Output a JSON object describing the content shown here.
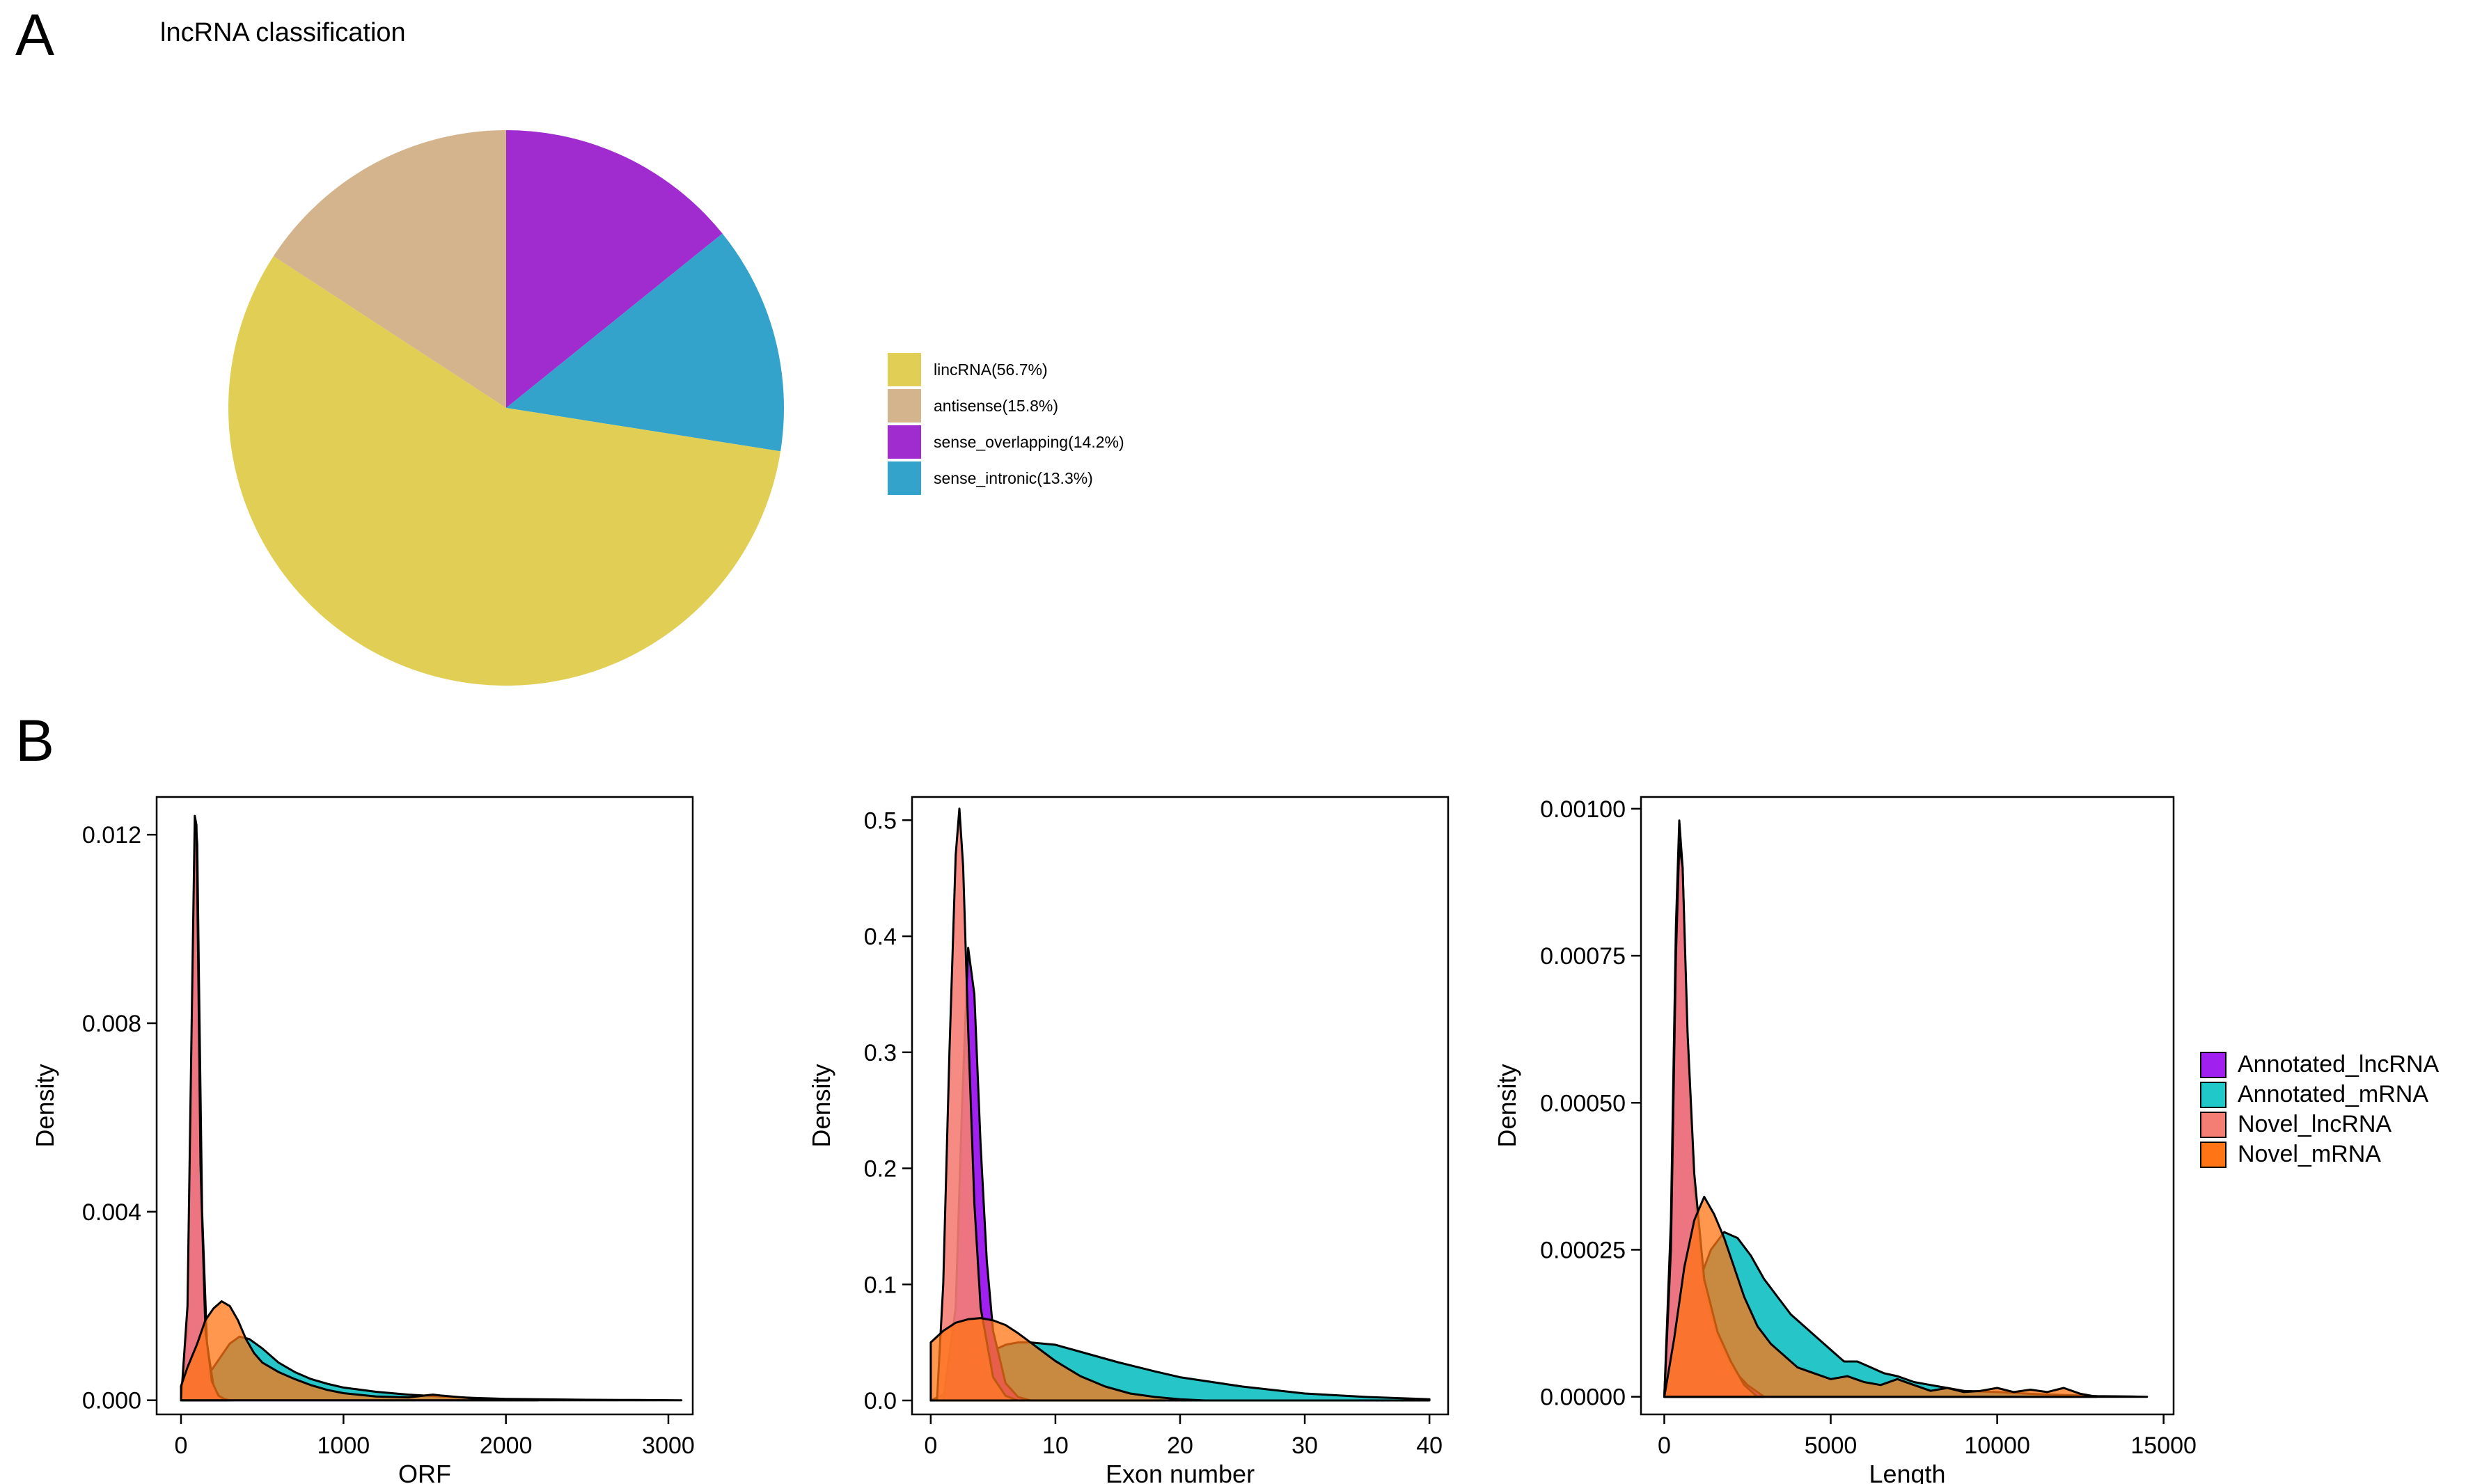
{
  "panels": {
    "a_label": "A",
    "b_label": "B"
  },
  "chart_data": [
    {
      "type": "pie",
      "title": "lncRNA classification",
      "slices": [
        {
          "label": "lincRNA(56.7%)",
          "name": "lincRNA",
          "value": 56.7,
          "color": "#E1CF55"
        },
        {
          "label": "antisense(15.8%)",
          "name": "antisense",
          "value": 15.8,
          "color": "#D3B48C"
        },
        {
          "label": "sense_overlapping(14.2%)",
          "name": "sense_overlapping",
          "value": 14.2,
          "color": "#A02BCE"
        },
        {
          "label": "sense_intronic(13.3%)",
          "name": "sense_intronic",
          "value": 13.3,
          "color": "#34A3CB"
        }
      ],
      "legend_order": [
        0,
        1,
        2,
        3
      ],
      "draw_order": [
        2,
        3,
        0,
        1
      ]
    },
    {
      "type": "area",
      "id": "orf",
      "xlabel": "ORF",
      "ylabel": "Density",
      "xlim": [
        -150,
        3150
      ],
      "ylim": [
        -0.0003,
        0.0128
      ],
      "xticks": [
        0,
        1000,
        2000,
        3000
      ],
      "yticks": [
        0.0,
        0.004,
        0.008,
        0.012
      ],
      "ytick_labels": [
        "0.000",
        "0.004",
        "0.008",
        "0.012"
      ],
      "series": [
        {
          "name": "Annotated_mRNA",
          "x": [
            0,
            60,
            120,
            180,
            240,
            300,
            360,
            420,
            500,
            600,
            700,
            800,
            900,
            1000,
            1200,
            1400,
            1600,
            1800,
            2000,
            2200,
            2500,
            2800,
            3080
          ],
          "y": [
            0.0,
            0.0001,
            0.0003,
            0.0006,
            0.0009,
            0.0012,
            0.00135,
            0.0013,
            0.0011,
            0.0008,
            0.0006,
            0.00045,
            0.00035,
            0.00027,
            0.00018,
            0.00012,
            8e-05,
            5e-05,
            3e-05,
            2e-05,
            1e-05,
            5e-06,
            0.0
          ]
        },
        {
          "name": "Annotated_lncRNA",
          "x": [
            0,
            40,
            70,
            90,
            100,
            110,
            130,
            160,
            200,
            240,
            300
          ],
          "y": [
            0.0,
            0.0015,
            0.0085,
            0.0123,
            0.0118,
            0.009,
            0.004,
            0.0012,
            0.0003,
            5e-05,
            0.0
          ]
        },
        {
          "name": "Novel_lncRNA",
          "x": [
            0,
            40,
            70,
            85,
            95,
            105,
            120,
            150,
            190,
            230,
            280
          ],
          "y": [
            0.0,
            0.002,
            0.009,
            0.0124,
            0.0122,
            0.0095,
            0.005,
            0.0015,
            0.0004,
            0.0001,
            0.0
          ]
        },
        {
          "name": "Novel_mRNA",
          "x": [
            0,
            40,
            100,
            150,
            200,
            250,
            300,
            350,
            400,
            450,
            500,
            600,
            700,
            800,
            900,
            1000,
            1200,
            1400,
            1500,
            1550,
            1600,
            1800,
            2000,
            2200
          ],
          "y": [
            0.0003,
            0.0007,
            0.0012,
            0.0017,
            0.00195,
            0.0021,
            0.002,
            0.0017,
            0.0013,
            0.001,
            0.0008,
            0.0006,
            0.00045,
            0.00032,
            0.00022,
            0.00015,
            8e-05,
            6e-05,
            0.0001,
            0.00012,
            0.0001,
            4e-05,
            1e-05,
            0.0
          ]
        }
      ]
    },
    {
      "type": "area",
      "id": "exon",
      "xlabel": "Exon number",
      "ylabel": "Density",
      "xlim": [
        -1.5,
        41.5
      ],
      "ylim": [
        -0.012,
        0.52
      ],
      "xticks": [
        0,
        10,
        20,
        30,
        40
      ],
      "yticks": [
        0.0,
        0.1,
        0.2,
        0.3,
        0.4,
        0.5
      ],
      "ytick_labels": [
        "0.0",
        "0.1",
        "0.2",
        "0.3",
        "0.4",
        "0.5"
      ],
      "series": [
        {
          "name": "Annotated_mRNA",
          "x": [
            0,
            1,
            2,
            3,
            4,
            5,
            6,
            7,
            8,
            10,
            12,
            15,
            18,
            20,
            25,
            30,
            35,
            40
          ],
          "y": [
            0.0,
            0.005,
            0.015,
            0.025,
            0.035,
            0.043,
            0.048,
            0.05,
            0.05,
            0.048,
            0.042,
            0.033,
            0.025,
            0.02,
            0.012,
            0.006,
            0.003,
            0.001
          ]
        },
        {
          "name": "Annotated_lncRNA",
          "x": [
            1,
            2,
            2.5,
            3,
            3.5,
            4,
            4.5,
            5,
            6,
            7,
            8
          ],
          "y": [
            0.0,
            0.08,
            0.25,
            0.39,
            0.35,
            0.22,
            0.12,
            0.06,
            0.015,
            0.003,
            0.0
          ]
        },
        {
          "name": "Novel_lncRNA",
          "x": [
            0.5,
            1,
            1.5,
            2,
            2.3,
            2.6,
            3,
            3.5,
            4,
            5,
            6,
            7
          ],
          "y": [
            0.0,
            0.1,
            0.3,
            0.47,
            0.51,
            0.46,
            0.32,
            0.17,
            0.08,
            0.02,
            0.004,
            0.0
          ]
        },
        {
          "name": "Novel_mRNA",
          "x": [
            0,
            1,
            2,
            3,
            4,
            5,
            6,
            7,
            8,
            9,
            10,
            12,
            14,
            16,
            18,
            20,
            22
          ],
          "y": [
            0.05,
            0.06,
            0.067,
            0.07,
            0.071,
            0.069,
            0.065,
            0.058,
            0.05,
            0.042,
            0.034,
            0.021,
            0.012,
            0.006,
            0.003,
            0.001,
            0.0
          ]
        }
      ]
    },
    {
      "type": "area",
      "id": "length",
      "xlabel": "Length",
      "ylabel": "Density",
      "xlim": [
        -700,
        15300
      ],
      "ylim": [
        -3e-05,
        0.00102
      ],
      "xticks": [
        0,
        5000,
        10000,
        15000
      ],
      "yticks": [
        0.0,
        0.00025,
        0.0005,
        0.00075,
        0.001
      ],
      "ytick_labels": [
        "0.00000",
        "0.00025",
        "0.00050",
        "0.00075",
        "0.00100"
      ],
      "series": [
        {
          "name": "Annotated_mRNA",
          "x": [
            0,
            300,
            600,
            1000,
            1400,
            1800,
            2200,
            2600,
            3000,
            3400,
            3800,
            4200,
            4600,
            5000,
            5400,
            5800,
            6200,
            6600,
            7000,
            7500,
            8000,
            8500,
            9000,
            10000,
            11000,
            12000,
            13000,
            14000,
            14500
          ],
          "y": [
            0.0,
            3e-05,
            0.0001,
            0.00019,
            0.00025,
            0.00028,
            0.00027,
            0.00024,
            0.0002,
            0.00017,
            0.00014,
            0.00012,
            0.0001,
            8e-05,
            6e-05,
            6e-05,
            5e-05,
            4e-05,
            3.5e-05,
            2.5e-05,
            2e-05,
            1.5e-05,
            1e-05,
            8e-06,
            5e-06,
            3e-06,
            1e-06,
            5e-07,
            0.0
          ]
        },
        {
          "name": "Annotated_lncRNA",
          "x": [
            0,
            200,
            350,
            450,
            550,
            700,
            900,
            1200,
            1600,
            2000,
            2500,
            3000
          ],
          "y": [
            0.0,
            0.0003,
            0.0008,
            0.00098,
            0.0009,
            0.0006,
            0.00035,
            0.00018,
            0.0001,
            5e-05,
            2e-05,
            0.0
          ]
        },
        {
          "name": "Novel_lncRNA",
          "x": [
            0,
            200,
            350,
            450,
            550,
            700,
            900,
            1200,
            1600,
            2000,
            2400,
            2800
          ],
          "y": [
            0.0,
            0.00025,
            0.00075,
            0.00094,
            0.0009,
            0.00062,
            0.00038,
            0.0002,
            0.00011,
            6e-05,
            2e-05,
            0.0
          ]
        },
        {
          "name": "Novel_mRNA",
          "x": [
            0,
            300,
            600,
            900,
            1200,
            1500,
            1800,
            2100,
            2400,
            2800,
            3200,
            3600,
            4000,
            4500,
            5000,
            5500,
            6000,
            6500,
            7000,
            7500,
            8000,
            8500,
            9000,
            9500,
            10000,
            10500,
            11000,
            11500,
            12000,
            12500,
            13000
          ],
          "y": [
            0.0,
            0.0001,
            0.00022,
            0.0003,
            0.00034,
            0.00031,
            0.00027,
            0.00022,
            0.00017,
            0.00012,
            9e-05,
            7e-05,
            5e-05,
            4e-05,
            3e-05,
            3.5e-05,
            2.5e-05,
            2e-05,
            3e-05,
            2e-05,
            1e-05,
            1.5e-05,
            8e-06,
            1e-05,
            1.5e-05,
            8e-06,
            1.2e-05,
            8e-06,
            1.5e-05,
            5e-06,
            0.0
          ]
        }
      ]
    }
  ],
  "density_legend": [
    {
      "label": "Annotated_lncRNA",
      "color": "#A020F0"
    },
    {
      "label": "Annotated_mRNA",
      "color": "#20C8C8"
    },
    {
      "label": "Novel_lncRNA",
      "color": "#F47E74"
    },
    {
      "label": "Novel_mRNA",
      "color": "#FF7414"
    }
  ],
  "series_fill": {
    "Annotated_mRNA": "#26C6C8",
    "Annotated_lncRNA": "#A020F0",
    "Novel_lncRNA": "#F47E74",
    "Novel_mRNA": "#FF7414"
  }
}
